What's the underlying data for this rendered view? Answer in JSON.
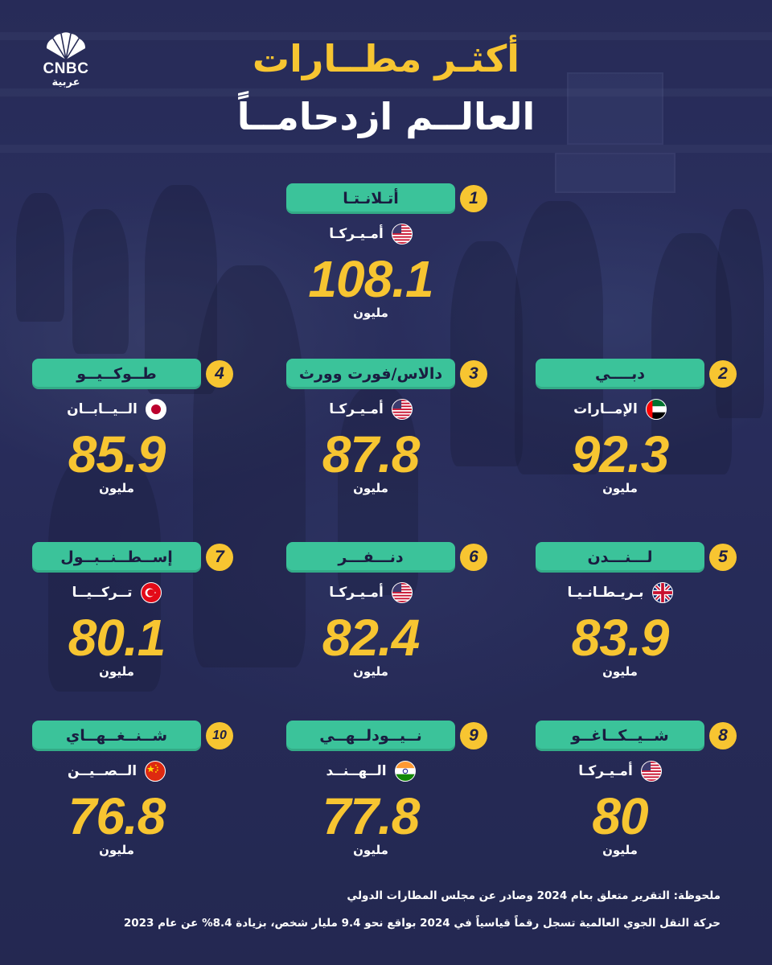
{
  "brand": {
    "name": "CNBC",
    "subname": "عربية"
  },
  "title": {
    "line1": "أكثـر مطــارات",
    "line2": "العالــم ازدحامــاً"
  },
  "airports": [
    {
      "rank": "1",
      "city": "أتـلانـتـا",
      "country": "أمـيـركـا",
      "flag": "us-flag-icon",
      "value": "108.1",
      "unit": "مليون"
    },
    {
      "rank": "2",
      "city": "دبــــي",
      "country": "الإمــارات",
      "flag": "uae-flag-icon",
      "value": "92.3",
      "unit": "مليون"
    },
    {
      "rank": "3",
      "city": "دالاس/فورت وورث",
      "country": "أمـيـركـا",
      "flag": "us-flag-icon",
      "value": "87.8",
      "unit": "مليون"
    },
    {
      "rank": "4",
      "city": "طــوكــيــو",
      "country": "الــيــابــان",
      "flag": "japan-flag-icon",
      "value": "85.9",
      "unit": "مليون"
    },
    {
      "rank": "5",
      "city": "لـــنـــدن",
      "country": "بـريـطـانـيـا",
      "flag": "uk-flag-icon",
      "value": "83.9",
      "unit": "مليون"
    },
    {
      "rank": "6",
      "city": "دنـــفـــر",
      "country": "أمـيـركـا",
      "flag": "us-flag-icon",
      "value": "82.4",
      "unit": "مليون"
    },
    {
      "rank": "7",
      "city": "إســطــنــبــول",
      "country": "تــركــيــا",
      "flag": "turkey-flag-icon",
      "value": "80.1",
      "unit": "مليون"
    },
    {
      "rank": "8",
      "city": "شــيــكــاغــو",
      "country": "أمـيـركـا",
      "flag": "us-flag-icon",
      "value": "80",
      "unit": "مليون"
    },
    {
      "rank": "9",
      "city": "نــيــودلــهــي",
      "country": "الــهــنــد",
      "flag": "india-flag-icon",
      "value": "77.8",
      "unit": "مليون"
    },
    {
      "rank": "10",
      "city": "شــنــغــهــاي",
      "country": "الــصــيــن",
      "flag": "china-flag-icon",
      "value": "76.8",
      "unit": "مليون"
    }
  ],
  "notes": {
    "line1": "ملحوظة: التقرير متعلق بعام 2024 وصادر عن مجلس المطارات الدولي",
    "line2": "حركة النقل الجوي العالمية تسجل رقماً قياسياً في 2024 بواقع نحو 9.4 مليار شخص، بزيادة 8.4% عن عام 2023"
  },
  "colors": {
    "accent": "#f7c531",
    "pill": "#3bc39a",
    "background": "#262a55"
  }
}
